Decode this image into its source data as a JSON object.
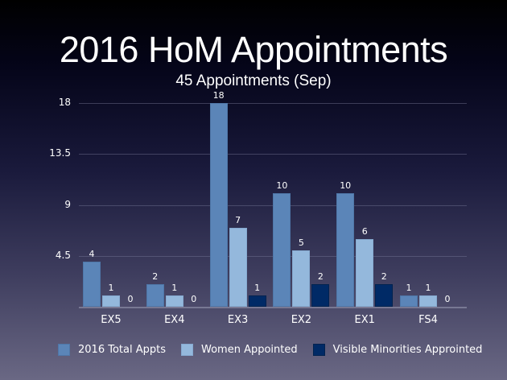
{
  "slide": {
    "title": "2016 HoM Appointments",
    "subtitle": "45 Appointments (Sep)"
  },
  "chart_data": {
    "type": "bar",
    "title": "2016 HoM Appointments",
    "subtitle": "45 Appointments (Sep)",
    "categories": [
      "EX5",
      "EX4",
      "EX3",
      "EX2",
      "EX1",
      "FS4"
    ],
    "series": [
      {
        "name": "2016 Total Appts",
        "color": "#5b85b8",
        "values": [
          4,
          2,
          18,
          10,
          10,
          1
        ]
      },
      {
        "name": "Women Appointed",
        "color": "#94b8dc",
        "values": [
          1,
          1,
          7,
          5,
          6,
          1
        ]
      },
      {
        "name": "Visible Minorities Approinted",
        "color": "#002a66",
        "values": [
          0,
          0,
          1,
          2,
          2,
          0
        ]
      }
    ],
    "yticks": [
      "4.5",
      "9",
      "13.5",
      "18"
    ],
    "ylim": [
      0,
      18
    ],
    "xlabel": "",
    "ylabel": "",
    "grid": true,
    "legend_position": "bottom",
    "data_labels": true
  }
}
